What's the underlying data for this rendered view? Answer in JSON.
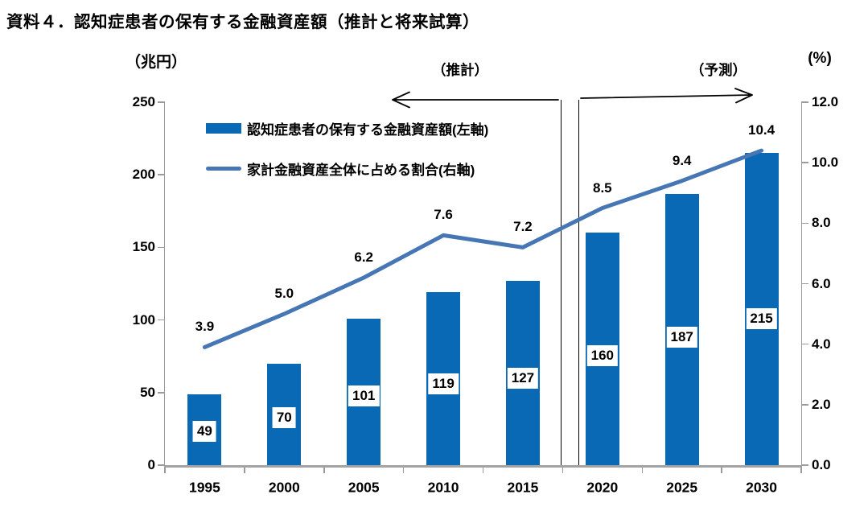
{
  "title": "資料４．認知症患者の保有する金融資産額（推計と将来試算）",
  "colors": {
    "bar": "#0a69b4",
    "line": "#4676b4",
    "axis": "#9b9b9b",
    "divider": "#000000",
    "text": "#000000"
  },
  "chart_data": {
    "type": "bar+line combo",
    "title": "資料４．認知症患者の保有する金融資産額（推計と将来試算）",
    "categories": [
      "1995",
      "2000",
      "2005",
      "2010",
      "2015",
      "2020",
      "2025",
      "2030"
    ],
    "series": [
      {
        "name": "認知症患者の保有する金融資産額(左軸)",
        "chart_type": "bar",
        "axis": "left",
        "values": [
          49,
          70,
          101,
          119,
          127,
          160,
          187,
          215
        ],
        "labels": [
          "49",
          "70",
          "101",
          "119",
          "127",
          "160",
          "187",
          "215"
        ],
        "color": "#0a69b4"
      },
      {
        "name": "家計金融資産全体に占める割合(右軸)",
        "chart_type": "line",
        "axis": "right",
        "values": [
          3.9,
          5.0,
          6.2,
          7.6,
          7.2,
          8.5,
          9.4,
          10.4
        ],
        "labels": [
          "3.9",
          "5.0",
          "6.2",
          "7.6",
          "7.2",
          "8.5",
          "9.4",
          "10.4"
        ],
        "color": "#4676b4"
      }
    ],
    "left_axis": {
      "unit": "（兆円）",
      "min": 0,
      "max": 250,
      "tick_step": 50,
      "tick_labels": [
        "250",
        "200",
        "150",
        "100",
        "50",
        "0"
      ]
    },
    "right_axis": {
      "unit": "(%)",
      "min": 0,
      "max": 12,
      "tick_step": 2,
      "tick_labels": [
        "12.0",
        "10.0",
        "8.0",
        "6.0",
        "4.0",
        "2.0",
        "0.0"
      ]
    },
    "x_axis": {
      "tick_labels": [
        "1995",
        "2000",
        "2005",
        "2010",
        "2015",
        "2020",
        "2025",
        "2030"
      ]
    },
    "annotations": {
      "estimate_label": "（推計）",
      "forecast_label": "（予測）",
      "estimate_span_categories": [
        "1995",
        "2015"
      ],
      "forecast_span_categories": [
        "2020",
        "2030"
      ]
    },
    "legend_position": "top-left inside plot",
    "grid": false
  }
}
